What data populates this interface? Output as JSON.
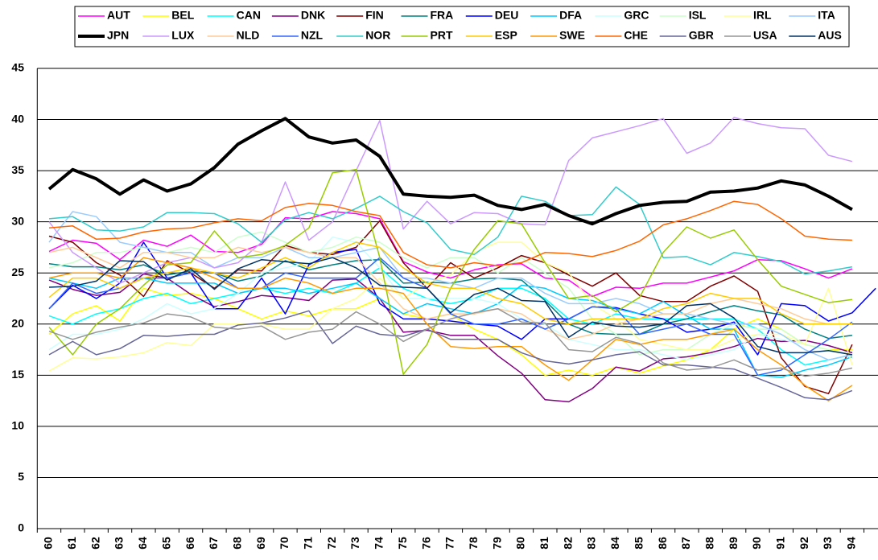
{
  "chart_data": {
    "type": "line",
    "categories": [
      "60",
      "61",
      "62",
      "63",
      "64",
      "65",
      "66",
      "67",
      "68",
      "69",
      "70",
      "71",
      "72",
      "73",
      "74",
      "75",
      "76",
      "77",
      "78",
      "79",
      "80",
      "81",
      "82",
      "83",
      "84",
      "85",
      "86",
      "87",
      "88",
      "89",
      "90",
      "91",
      "92",
      "93",
      "94",
      null
    ],
    "ylim": [
      0,
      45
    ],
    "yticks": [
      0,
      5,
      10,
      15,
      20,
      25,
      30,
      35,
      40,
      45
    ],
    "grid": true,
    "legend": "top",
    "series": [
      {
        "name": "AUT",
        "color": "#ff00ff",
        "values": [
          27.1,
          28.2,
          27.9,
          26.3,
          28.2,
          27.6,
          28.7,
          27.1,
          27.0,
          27.8,
          30.4,
          30.3,
          31.0,
          30.8,
          30.3,
          26.1,
          25.1,
          24.5,
          25.3,
          25.8,
          25.9,
          24.5,
          24.3,
          22.7,
          23.6,
          23.5,
          24.0,
          24.0,
          24.6,
          25.2,
          26.3,
          26.2,
          25.4,
          24.5,
          25.4,
          null
        ]
      },
      {
        "name": "BEL",
        "color": "#ffff00",
        "values": [
          19.0,
          21.0,
          21.8,
          20.3,
          23.5,
          22.8,
          23.0,
          22.5,
          21.5,
          20.5,
          21.3,
          20.8,
          21.5,
          21.5,
          22.5,
          21.0,
          20.5,
          21.0,
          19.5,
          18.5,
          17.0,
          15.0,
          15.5,
          15.0,
          15.8,
          15.2,
          15.9,
          16.5,
          17.5,
          19.5,
          20.5,
          19.5,
          18.0,
          17.5,
          17.5,
          null
        ]
      },
      {
        "name": "CAN",
        "color": "#00ffff",
        "values": [
          20.8,
          20.0,
          21.0,
          21.5,
          22.5,
          23.0,
          22.0,
          22.5,
          23.0,
          23.5,
          23.0,
          23.5,
          23.0,
          24.0,
          25.5,
          23.5,
          22.5,
          22.0,
          22.5,
          23.5,
          23.5,
          22.5,
          20.5,
          20.0,
          21.0,
          20.5,
          20.5,
          20.5,
          20.5,
          20.5,
          19.5,
          17.5,
          16.0,
          16.5,
          17.0,
          null
        ]
      },
      {
        "name": "DNK",
        "color": "#800080",
        "values": [
          24.3,
          23.4,
          22.8,
          23.1,
          24.9,
          24.5,
          22.9,
          21.7,
          22.2,
          22.8,
          22.6,
          22.3,
          24.3,
          24.4,
          22.5,
          19.2,
          19.4,
          18.9,
          18.9,
          16.9,
          15.2,
          12.6,
          12.4,
          13.7,
          15.8,
          15.4,
          16.6,
          16.8,
          17.2,
          17.8,
          18.6,
          18.3,
          18.4,
          17.9,
          17.2,
          null
        ]
      },
      {
        "name": "FIN",
        "color": "#800000",
        "values": [
          28.6,
          28.0,
          26.0,
          24.8,
          22.7,
          26.2,
          25.0,
          23.5,
          25.3,
          25.2,
          27.7,
          27.0,
          26.8,
          27.5,
          30.1,
          26.0,
          23.5,
          26.0,
          24.5,
          25.5,
          26.7,
          26.0,
          24.8,
          23.7,
          25.0,
          22.8,
          22.2,
          22.2,
          23.7,
          24.7,
          23.2,
          16.7,
          13.9,
          13.2,
          18.0,
          null
        ]
      },
      {
        "name": "FRA",
        "color": "#008080",
        "values": [
          25.9,
          25.6,
          25.6,
          25.3,
          25.8,
          24.8,
          25.2,
          25.0,
          24.2,
          24.7,
          26.2,
          25.3,
          25.8,
          26.2,
          26.3,
          24.0,
          24.1,
          24.0,
          24.4,
          24.5,
          24.3,
          22.3,
          20.0,
          19.1,
          19.0,
          19.0,
          20.0,
          20.5,
          21.2,
          21.8,
          21.3,
          20.9,
          19.5,
          18.6,
          18.9,
          null
        ]
      },
      {
        "name": "DEU",
        "color": "#0000ff",
        "values": [
          21.5,
          23.8,
          22.5,
          24.0,
          28.0,
          24.5,
          25.0,
          21.5,
          21.5,
          24.5,
          21.0,
          25.8,
          27.0,
          27.3,
          22.0,
          20.5,
          20.5,
          20.3,
          20.0,
          19.8,
          18.5,
          20.5,
          20.5,
          21.7,
          21.6,
          21.0,
          20.5,
          19.2,
          19.5,
          20.2,
          17.0,
          22.0,
          21.8,
          20.3,
          21.1,
          23.5
        ]
      },
      {
        "name": "DFA",
        "color": "#00ccff",
        "values": [
          24.5,
          24.0,
          23.5,
          24.5,
          24.5,
          24.0,
          24.0,
          24.0,
          23.0,
          23.5,
          23.5,
          23.0,
          23.5,
          24.0,
          22.5,
          21.0,
          22.0,
          21.5,
          21.0,
          22.0,
          23.8,
          23.5,
          22.5,
          22.3,
          21.5,
          21.0,
          22.2,
          20.8,
          19.5,
          19.5,
          15.0,
          14.8,
          15.5,
          16.0,
          16.8,
          null
        ]
      },
      {
        "name": "GRC",
        "color": "#ccffff",
        "values": [
          17.5,
          19.0,
          19.0,
          19.5,
          20.5,
          22.0,
          21.0,
          21.5,
          23.0,
          25.0,
          25.5,
          26.0,
          28.5,
          28.0,
          25.5,
          22.5,
          22.5,
          22.5,
          22.5,
          22.0,
          20.5,
          20.0,
          18.5,
          18.0,
          17.5,
          17.5,
          17.0,
          16.5,
          17.0,
          17.5,
          19.0,
          18.5,
          18.0,
          17.5,
          17.0,
          null
        ]
      },
      {
        "name": "ISL",
        "color": "#ccffcc",
        "values": [
          25.5,
          26.0,
          27.0,
          27.0,
          27.5,
          27.0,
          27.5,
          27.0,
          28.5,
          29.0,
          28.0,
          27.0,
          27.5,
          28.5,
          28.0,
          26.5,
          25.5,
          26.5,
          26.5,
          25.0,
          26.5,
          25.0,
          23.5,
          20.5,
          19.0,
          17.0,
          17.5,
          17.5,
          19.0,
          20.0,
          19.5,
          19.5,
          18.0,
          17.5,
          17.0,
          null
        ]
      },
      {
        "name": "IRL",
        "color": "#ffff99",
        "values": [
          15.4,
          16.7,
          16.6,
          16.8,
          17.2,
          18.2,
          17.9,
          20.0,
          20.0,
          20.0,
          19.5,
          19.5,
          21.5,
          22.5,
          24.5,
          22.5,
          24.0,
          24.8,
          27.0,
          28.0,
          28.0,
          26.0,
          25.0,
          22.0,
          20.5,
          18.5,
          18.0,
          17.5,
          17.5,
          18.5,
          19.0,
          19.0,
          18.0,
          23.5,
          16.0,
          null
        ]
      },
      {
        "name": "ITA",
        "color": "#99ccff",
        "values": [
          28.0,
          31.0,
          30.5,
          28.0,
          27.5,
          27.0,
          27.0,
          25.5,
          26.5,
          26.5,
          27.5,
          26.5,
          26.5,
          27.0,
          27.5,
          24.5,
          24.5,
          24.0,
          23.5,
          24.5,
          24.5,
          23.0,
          22.0,
          22.0,
          22.5,
          22.0,
          21.0,
          21.0,
          20.5,
          20.0,
          20.0,
          19.0,
          17.5,
          16.5,
          17.0,
          null
        ]
      },
      {
        "name": "JPN",
        "color": "#000000",
        "line_width": 4,
        "values": [
          33.2,
          35.1,
          34.2,
          32.7,
          34.1,
          33.0,
          33.7,
          35.3,
          37.6,
          38.9,
          40.1,
          38.3,
          37.7,
          38.0,
          36.4,
          32.7,
          32.5,
          32.4,
          32.6,
          31.6,
          31.2,
          31.7,
          30.6,
          29.8,
          30.8,
          31.6,
          31.9,
          32.0,
          32.9,
          33.0,
          33.3,
          34.0,
          33.6,
          32.5,
          31.2,
          null
        ]
      },
      {
        "name": "LUX",
        "color": "#cc99ff",
        "values": [
          30.0,
          27.0,
          25.5,
          24.0,
          25.0,
          26.0,
          26.5,
          25.5,
          26.0,
          28.0,
          33.9,
          28.2,
          30.0,
          35.0,
          39.9,
          29.3,
          32.0,
          29.8,
          30.9,
          30.8,
          29.8,
          29.7,
          36.0,
          38.2,
          38.8,
          39.4,
          40.1,
          36.7,
          37.7,
          40.2,
          39.6,
          39.2,
          39.1,
          36.5,
          35.9,
          null
        ]
      },
      {
        "name": "NLD",
        "color": "#ffcc99",
        "values": [
          27.0,
          27.5,
          26.5,
          25.5,
          27.0,
          27.0,
          26.5,
          26.5,
          27.5,
          27.0,
          27.5,
          27.0,
          26.5,
          26.5,
          24.0,
          21.5,
          20.5,
          21.0,
          21.0,
          21.5,
          21.0,
          19.5,
          18.5,
          19.0,
          20.0,
          20.5,
          21.0,
          21.0,
          22.0,
          22.5,
          22.0,
          21.5,
          20.5,
          20.0,
          20.0,
          null
        ]
      },
      {
        "name": "NZL",
        "color": "#3366ff",
        "values": [
          21.5,
          24.0,
          23.0,
          23.5,
          24.5,
          24.5,
          25.0,
          25.0,
          23.5,
          23.5,
          25.0,
          24.5,
          24.5,
          24.5,
          26.5,
          24.5,
          23.5,
          21.0,
          20.0,
          20.0,
          20.5,
          19.5,
          20.5,
          21.7,
          21.5,
          19.0,
          19.5,
          20.0,
          19.0,
          19.0,
          15.0,
          15.5,
          17.0,
          18.5,
          20.2,
          null
        ]
      },
      {
        "name": "NOR",
        "color": "#33cccc",
        "values": [
          30.3,
          30.5,
          29.2,
          29.1,
          29.5,
          30.9,
          30.9,
          30.8,
          29.8,
          28.0,
          30.2,
          30.9,
          30.3,
          31.3,
          32.5,
          31.0,
          29.9,
          27.3,
          26.8,
          28.5,
          32.5,
          32.0,
          30.6,
          30.7,
          33.4,
          31.7,
          26.5,
          26.6,
          25.8,
          27.0,
          26.6,
          26.1,
          24.9,
          25.2,
          25.6,
          null
        ]
      },
      {
        "name": "PRT",
        "color": "#99cc00",
        "values": [
          19.7,
          17.0,
          20.0,
          21.5,
          23.8,
          25.8,
          26.0,
          29.1,
          26.5,
          26.8,
          27.7,
          29.4,
          34.8,
          35.1,
          26.5,
          15.1,
          18.0,
          23.5,
          27.3,
          30.1,
          29.8,
          26.0,
          22.5,
          22.8,
          21.2,
          22.6,
          27.0,
          29.5,
          28.4,
          29.2,
          26.3,
          23.7,
          22.9,
          22.1,
          22.4,
          null
        ]
      },
      {
        "name": "ESP",
        "color": "#ffcc00",
        "values": [
          22.6,
          24.5,
          24.5,
          23.5,
          24.5,
          25.0,
          25.5,
          25.0,
          24.5,
          25.5,
          26.5,
          25.5,
          27.0,
          28.0,
          27.5,
          25.5,
          24.0,
          23.5,
          23.5,
          22.5,
          22.0,
          20.5,
          20.0,
          20.5,
          20.5,
          20.5,
          21.5,
          22.0,
          23.0,
          22.5,
          22.5,
          21.0,
          20.0,
          20.0,
          20.0,
          null
        ]
      },
      {
        "name": "SWE",
        "color": "#ff9900",
        "values": [
          24.5,
          25.0,
          25.0,
          24.5,
          26.5,
          26.0,
          25.5,
          24.5,
          23.5,
          23.5,
          24.5,
          24.0,
          23.0,
          23.5,
          23.5,
          23.0,
          20.0,
          17.8,
          17.6,
          17.8,
          17.8,
          16.0,
          14.5,
          16.5,
          18.5,
          18.0,
          18.5,
          18.5,
          19.0,
          19.5,
          17.5,
          16.0,
          14.0,
          12.5,
          14.0,
          null
        ]
      },
      {
        "name": "CHE",
        "color": "#ff6600",
        "values": [
          29.4,
          29.6,
          28.3,
          28.4,
          29.0,
          29.3,
          29.4,
          29.9,
          30.3,
          30.1,
          31.4,
          31.8,
          31.6,
          31.0,
          30.6,
          27.0,
          25.8,
          25.5,
          26.0,
          25.7,
          26.0,
          27.0,
          26.9,
          26.6,
          27.2,
          28.1,
          29.7,
          30.3,
          31.1,
          32.0,
          31.7,
          30.3,
          28.6,
          28.3,
          28.2,
          null
        ]
      },
      {
        "name": "GBR",
        "color": "#666699",
        "values": [
          17.0,
          18.3,
          17.0,
          17.6,
          18.9,
          18.8,
          19.0,
          19.0,
          19.9,
          20.1,
          20.6,
          21.3,
          18.1,
          19.8,
          19.0,
          18.8,
          19.5,
          18.5,
          18.5,
          18.5,
          17.2,
          16.4,
          16.1,
          16.5,
          17.0,
          17.3,
          16.0,
          16.0,
          15.8,
          15.6,
          14.7,
          13.8,
          12.8,
          12.6,
          13.5,
          null
        ]
      },
      {
        "name": "USA",
        "color": "#969696",
        "values": [
          19.3,
          18.5,
          19.2,
          19.7,
          20.1,
          21.0,
          20.7,
          19.7,
          19.5,
          19.8,
          18.5,
          19.2,
          19.5,
          21.2,
          20.0,
          18.3,
          19.5,
          20.5,
          21.1,
          21.5,
          20.2,
          20.1,
          17.5,
          17.3,
          18.7,
          18.1,
          16.2,
          15.5,
          15.7,
          16.5,
          15.5,
          15.7,
          14.9,
          15.2,
          15.7,
          null
        ]
      },
      {
        "name": "AUS",
        "color": "#003366",
        "values": [
          23.6,
          23.7,
          24.2,
          26.2,
          26.1,
          24.3,
          25.4,
          23.4,
          25.4,
          26.3,
          26.1,
          25.9,
          26.5,
          25.5,
          23.8,
          23.6,
          23.5,
          21.1,
          22.9,
          23.5,
          22.3,
          22.2,
          18.7,
          20.2,
          19.8,
          19.7,
          20.0,
          21.8,
          22.0,
          20.6,
          17.8,
          17.2,
          17.2,
          17.4,
          17.0,
          null
        ]
      }
    ]
  }
}
